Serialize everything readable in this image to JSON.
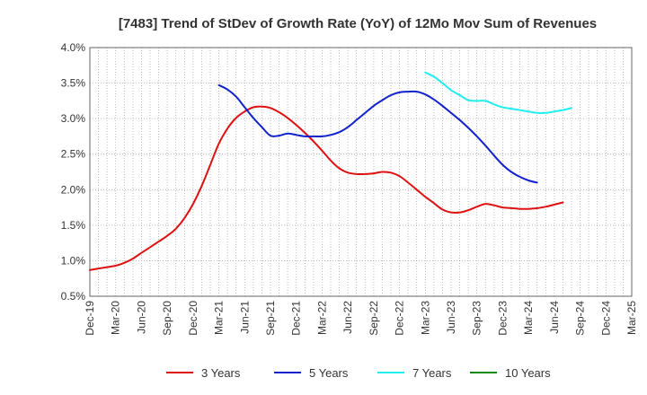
{
  "chart_data": {
    "type": "line",
    "title": "[7483]  Trend of StDev of Growth Rate (YoY) of 12Mo Mov Sum of Revenues",
    "xlabel": "",
    "ylabel": "",
    "ylim": [
      0.005,
      0.04
    ],
    "y_ticks": [
      0.005,
      0.01,
      0.015,
      0.02,
      0.025,
      0.03,
      0.035,
      0.04
    ],
    "y_tick_labels": [
      "0.5%",
      "1.0%",
      "1.5%",
      "2.0%",
      "2.5%",
      "3.0%",
      "3.5%",
      "4.0%"
    ],
    "x_tick_labels": [
      "Dec-19",
      "Mar-20",
      "Jun-20",
      "Sep-20",
      "Dec-20",
      "Mar-21",
      "Jun-21",
      "Sep-21",
      "Dec-21",
      "Mar-22",
      "Jun-22",
      "Sep-22",
      "Dec-22",
      "Mar-23",
      "Jun-23",
      "Sep-23",
      "Dec-23",
      "Mar-24",
      "Jun-24",
      "Sep-24",
      "Dec-24",
      "Mar-25"
    ],
    "grid": true,
    "legend_position": "bottom",
    "series": [
      {
        "name": "3 Years",
        "color": "#dd1111",
        "start_index": 0,
        "values": [
          0.0087,
          0.0089,
          0.0091,
          0.0093,
          0.0097,
          0.0103,
          0.0111,
          0.0119,
          0.0127,
          0.0135,
          0.0145,
          0.016,
          0.018,
          0.0205,
          0.0235,
          0.0265,
          0.0286,
          0.0301,
          0.031,
          0.0316,
          0.0317,
          0.0315,
          0.0309,
          0.0301,
          0.0291,
          0.028,
          0.0268,
          0.0255,
          0.0241,
          0.023,
          0.0224,
          0.0222,
          0.0222,
          0.0223,
          0.0225,
          0.0224,
          0.0219,
          0.021,
          0.02,
          0.019,
          0.0181,
          0.0172,
          0.0168,
          0.0168,
          0.0171,
          0.0176,
          0.018,
          0.0178,
          0.0175,
          0.0174,
          0.0173,
          0.0173,
          0.0174,
          0.0176,
          0.0179,
          0.0182
        ]
      },
      {
        "name": "5 Years",
        "color": "#1122cc",
        "start_index": 15,
        "values": [
          0.0347,
          0.0341,
          0.0331,
          0.0316,
          0.0301,
          0.0288,
          0.0276,
          0.0276,
          0.0279,
          0.0277,
          0.0275,
          0.0275,
          0.0275,
          0.0277,
          0.0281,
          0.0288,
          0.0298,
          0.0308,
          0.0318,
          0.0326,
          0.0333,
          0.0337,
          0.0338,
          0.0338,
          0.0334,
          0.0327,
          0.0318,
          0.0308,
          0.0298,
          0.0287,
          0.0275,
          0.0262,
          0.0248,
          0.0235,
          0.0225,
          0.0218,
          0.0213,
          0.021
        ]
      },
      {
        "name": "7 Years",
        "color": "#22eeee",
        "start_index": 39,
        "values": [
          0.0365,
          0.0359,
          0.035,
          0.034,
          0.0333,
          0.0326,
          0.0325,
          0.0325,
          0.032,
          0.0316,
          0.0314,
          0.0312,
          0.031,
          0.0308,
          0.0308,
          0.031,
          0.0312,
          0.0315
        ]
      },
      {
        "name": "10 Years",
        "color": "#118811",
        "start_index": 0,
        "values": []
      }
    ]
  }
}
